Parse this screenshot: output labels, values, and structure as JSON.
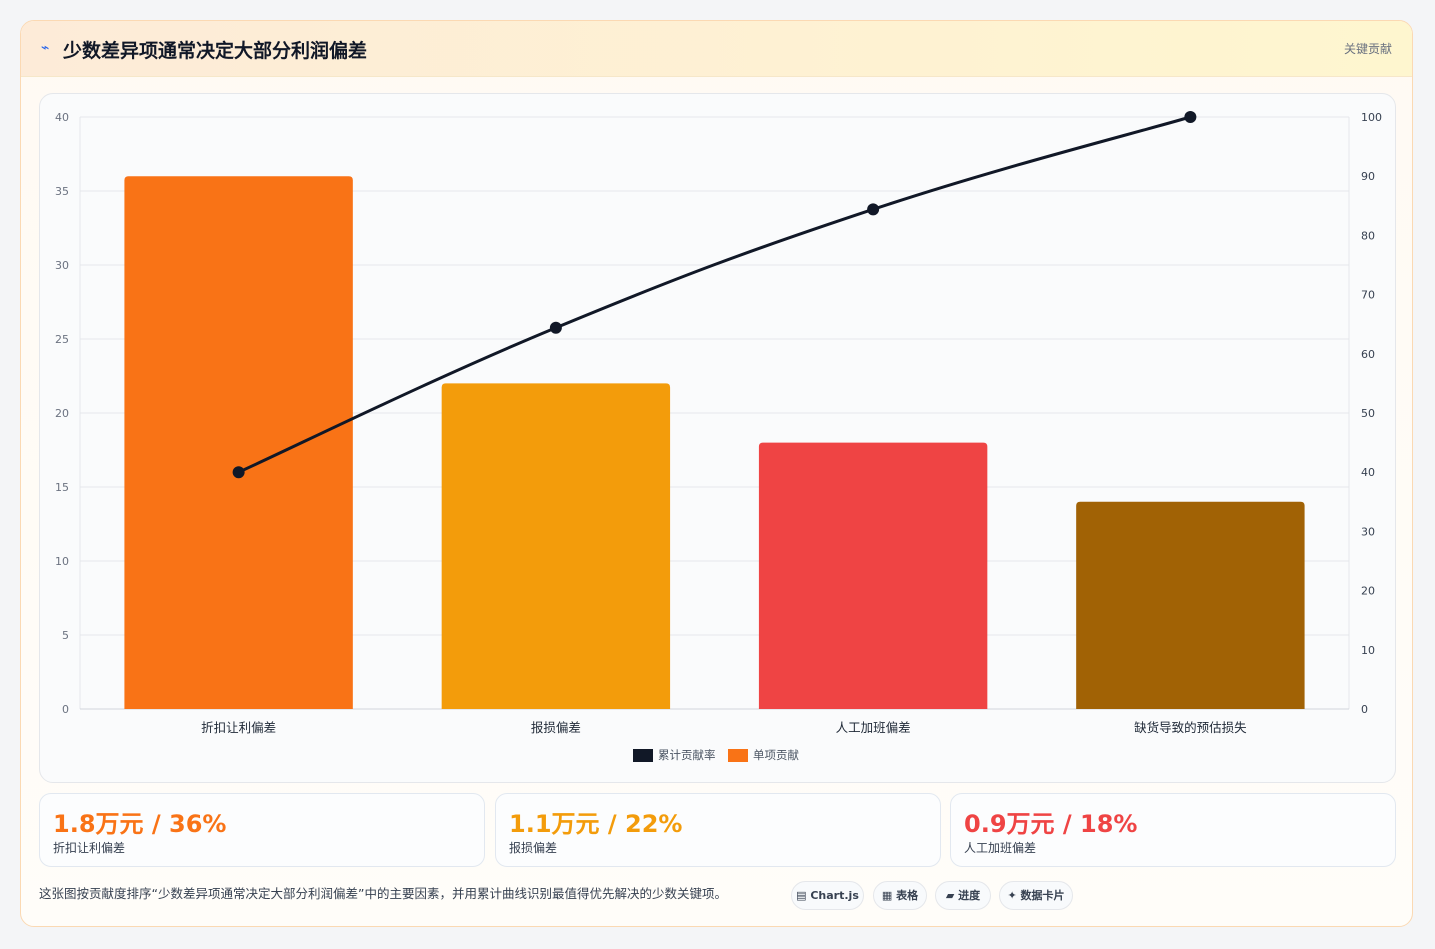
{
  "header": {
    "title": "少数差异项通常决定大部分利润偏差",
    "tag": "关键贡献"
  },
  "chart_data": {
    "type": "bar",
    "categories": [
      "折扣让利偏差",
      "报损偏差",
      "人工加班偏差",
      "缺货导致的预估损失"
    ],
    "series": [
      {
        "name": "单项贡献",
        "type": "bar",
        "values": [
          36,
          22,
          18,
          14
        ],
        "colors": [
          "#f97316",
          "#f39c0b",
          "#ef4444",
          "#a16205"
        ]
      },
      {
        "name": "累计贡献率",
        "type": "line",
        "axis": "right",
        "values": [
          40,
          64.4,
          84.4,
          100
        ],
        "color": "#111827"
      }
    ],
    "y_left": {
      "min": 0,
      "max": 40,
      "ticks": [
        0,
        5,
        10,
        15,
        20,
        25,
        30,
        35,
        40
      ]
    },
    "y_right": {
      "min": 0,
      "max": 100,
      "ticks": [
        0,
        10,
        20,
        30,
        40,
        50,
        60,
        70,
        80,
        90,
        100
      ]
    },
    "legend": [
      {
        "name": "累计贡献率",
        "color": "#111827"
      },
      {
        "name": "单项贡献",
        "color": "#f97316"
      }
    ],
    "legend_position": "bottom",
    "grid": true
  },
  "stats": [
    {
      "value": "1.8万元 / 36%",
      "label": "折扣让利偏差",
      "color": "#f97316"
    },
    {
      "value": "1.1万元 / 22%",
      "label": "报损偏差",
      "color": "#f39c0b"
    },
    {
      "value": "0.9万元 / 18%",
      "label": "人工加班偏差",
      "color": "#ef4444"
    }
  ],
  "footnote": "这张图按贡献度排序“少数差异项通常决定大部分利润偏差”中的主要因素，并用累计曲线识别最值得优先解决的少数关键项。",
  "pills": [
    {
      "icon": "chart-icon",
      "glyph": "▤",
      "label": "Chart.js"
    },
    {
      "icon": "table-icon",
      "glyph": "▦",
      "label": "表格"
    },
    {
      "icon": "progress-icon",
      "glyph": "▰",
      "label": "进度"
    },
    {
      "icon": "sparkle-icon",
      "glyph": "✦",
      "label": "数据卡片"
    }
  ]
}
